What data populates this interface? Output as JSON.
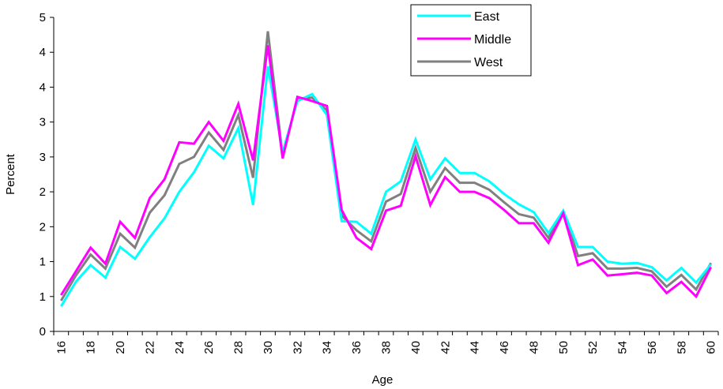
{
  "chart_data": {
    "type": "line",
    "xlabel": "Age",
    "ylabel": "Percent",
    "x": [
      16,
      17,
      18,
      19,
      20,
      21,
      22,
      23,
      24,
      25,
      26,
      27,
      28,
      29,
      30,
      31,
      32,
      33,
      34,
      35,
      36,
      37,
      38,
      39,
      40,
      41,
      42,
      43,
      44,
      45,
      46,
      47,
      48,
      49,
      50,
      51,
      52,
      53,
      54,
      55,
      56,
      57,
      58,
      59,
      60
    ],
    "xticks": [
      16,
      18,
      20,
      22,
      24,
      26,
      28,
      30,
      32,
      34,
      36,
      38,
      40,
      42,
      44,
      46,
      48,
      50,
      52,
      54,
      56,
      58,
      60
    ],
    "ylim": [
      0,
      4.5
    ],
    "yticks": [
      0,
      0.5,
      1,
      1.5,
      2,
      2.5,
      3,
      3.5,
      4,
      4.5
    ],
    "ytick_labels": [
      "0",
      "1",
      "1",
      "2",
      "2",
      "3",
      "3",
      "4",
      "4",
      "5"
    ],
    "grid": false,
    "legend_position": "top-right",
    "series": [
      {
        "name": "East",
        "color": "#00FFFF",
        "values": [
          0.36,
          0.71,
          0.95,
          0.77,
          1.21,
          1.04,
          1.35,
          1.62,
          2.0,
          2.28,
          2.66,
          2.48,
          2.91,
          1.81,
          3.8,
          2.57,
          3.3,
          3.4,
          3.1,
          1.58,
          1.57,
          1.4,
          2.0,
          2.15,
          2.75,
          2.18,
          2.48,
          2.27,
          2.27,
          2.15,
          1.97,
          1.82,
          1.71,
          1.41,
          1.73,
          1.21,
          1.21,
          1.0,
          0.97,
          0.98,
          0.92,
          0.73,
          0.91,
          0.7,
          0.96
        ]
      },
      {
        "name": "Middle",
        "color": "#FF00FF",
        "values": [
          0.52,
          0.86,
          1.2,
          0.97,
          1.57,
          1.34,
          1.91,
          2.18,
          2.71,
          2.69,
          3.0,
          2.73,
          3.26,
          2.45,
          4.1,
          2.48,
          3.36,
          3.3,
          3.23,
          1.74,
          1.34,
          1.18,
          1.73,
          1.8,
          2.51,
          1.81,
          2.21,
          2.0,
          2.0,
          1.91,
          1.74,
          1.55,
          1.55,
          1.27,
          1.69,
          0.95,
          1.03,
          0.8,
          0.82,
          0.84,
          0.8,
          0.55,
          0.71,
          0.5,
          0.92
        ]
      },
      {
        "name": "West",
        "color": "#808080",
        "values": [
          0.44,
          0.8,
          1.1,
          0.9,
          1.4,
          1.2,
          1.7,
          1.95,
          2.4,
          2.5,
          2.85,
          2.6,
          3.1,
          2.2,
          4.3,
          2.52,
          3.33,
          3.35,
          3.17,
          1.66,
          1.45,
          1.29,
          1.86,
          1.97,
          2.63,
          2.0,
          2.34,
          2.13,
          2.13,
          2.03,
          1.85,
          1.68,
          1.63,
          1.34,
          1.72,
          1.08,
          1.12,
          0.9,
          0.9,
          0.91,
          0.86,
          0.64,
          0.81,
          0.6,
          0.98
        ]
      }
    ]
  }
}
